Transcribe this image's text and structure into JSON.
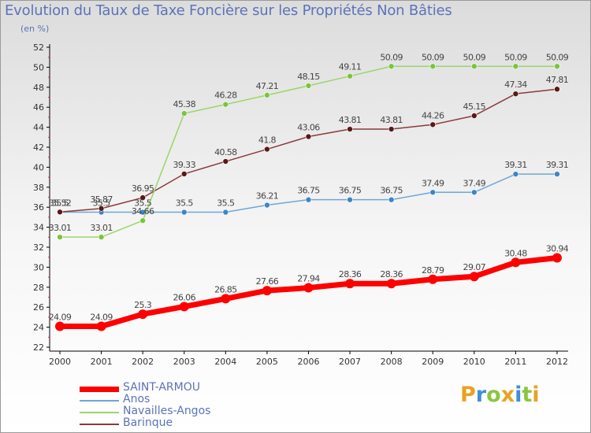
{
  "title": "Evolution du Taux de Taxe Foncière sur les Propriétés Non Bâties",
  "subtitle": "(en %)",
  "logo": {
    "text": "Proxiti",
    "letters": [
      {
        "ch": "P",
        "color": "#e8a323"
      },
      {
        "ch": "r",
        "color": "#3d8fd6"
      },
      {
        "ch": "o",
        "color": "#8cc63f"
      },
      {
        "ch": "x",
        "color": "#e8a323"
      },
      {
        "ch": "i",
        "color": "#3d8fd6"
      },
      {
        "ch": "t",
        "color": "#8cc63f"
      },
      {
        "ch": "i",
        "color": "#e8a323"
      }
    ]
  },
  "chart_data": {
    "type": "line",
    "title": "Evolution du Taux de Taxe Foncière sur les Propriétés Non Bâties",
    "subtitle": "(en %)",
    "x": [
      "2000",
      "2001",
      "2002",
      "2003",
      "2004",
      "2005",
      "2006",
      "2007",
      "2008",
      "2009",
      "2010",
      "2011",
      "2012"
    ],
    "ylim": [
      22,
      52
    ],
    "yticks": [
      22,
      24,
      26,
      28,
      30,
      32,
      34,
      36,
      38,
      40,
      42,
      44,
      46,
      48,
      50,
      52
    ],
    "grid": false,
    "legend_position": "bottom-left",
    "series": [
      {
        "name": "SAINT-ARMOU",
        "color": "#ff0000",
        "marker_color": "#ff0000",
        "width": 7,
        "marker_r": 6,
        "values": [
          24.09,
          24.09,
          25.3,
          26.06,
          26.85,
          27.66,
          27.94,
          28.36,
          28.36,
          28.79,
          29.07,
          30.48,
          30.94
        ],
        "labels": [
          "24.09",
          "24.09",
          "25.3",
          "26.06",
          "26.85",
          "27.66",
          "27.94",
          "28.36",
          "28.36",
          "28.79",
          "29.07",
          "30.48",
          "30.94"
        ]
      },
      {
        "name": "Anos",
        "color": "#6fa6d6",
        "marker_color": "#3d86c6",
        "width": 1.5,
        "marker_r": 3.5,
        "values": [
          35.5,
          35.5,
          35.5,
          35.5,
          35.5,
          36.21,
          36.75,
          36.75,
          36.75,
          37.49,
          37.49,
          39.31,
          39.31
        ],
        "labels": [
          "35.5",
          "35.5",
          "35.5",
          "35.5",
          "35.5",
          "36.21",
          "36.75",
          "36.75",
          "36.75",
          "37.49",
          "37.49",
          "39.31",
          "39.31"
        ]
      },
      {
        "name": "Navailles-Angos",
        "color": "#9ad66a",
        "marker_color": "#7cc43a",
        "width": 1.5,
        "marker_r": 3.5,
        "values": [
          33.01,
          33.01,
          34.66,
          45.38,
          46.28,
          47.21,
          48.15,
          49.11,
          50.09,
          50.09,
          50.09,
          50.09,
          50.09
        ],
        "labels": [
          "33.01",
          "33.01",
          "34.66",
          "45.38",
          "46.28",
          "47.21",
          "48.15",
          "49.11",
          "50.09",
          "50.09",
          "50.09",
          "50.09",
          "50.09"
        ]
      },
      {
        "name": "Barinque",
        "color": "#8a3a3a",
        "marker_color": "#5a1818",
        "width": 1.5,
        "marker_r": 3.5,
        "values": [
          35.52,
          35.87,
          36.95,
          39.33,
          40.58,
          41.8,
          43.06,
          43.81,
          43.81,
          44.26,
          45.15,
          47.34,
          47.81
        ],
        "labels": [
          "35.52",
          "35.87",
          "36.95",
          "39.33",
          "40.58",
          "41.8",
          "43.06",
          "43.81",
          "43.81",
          "44.26",
          "45.15",
          "47.34",
          "47.81"
        ]
      }
    ]
  }
}
